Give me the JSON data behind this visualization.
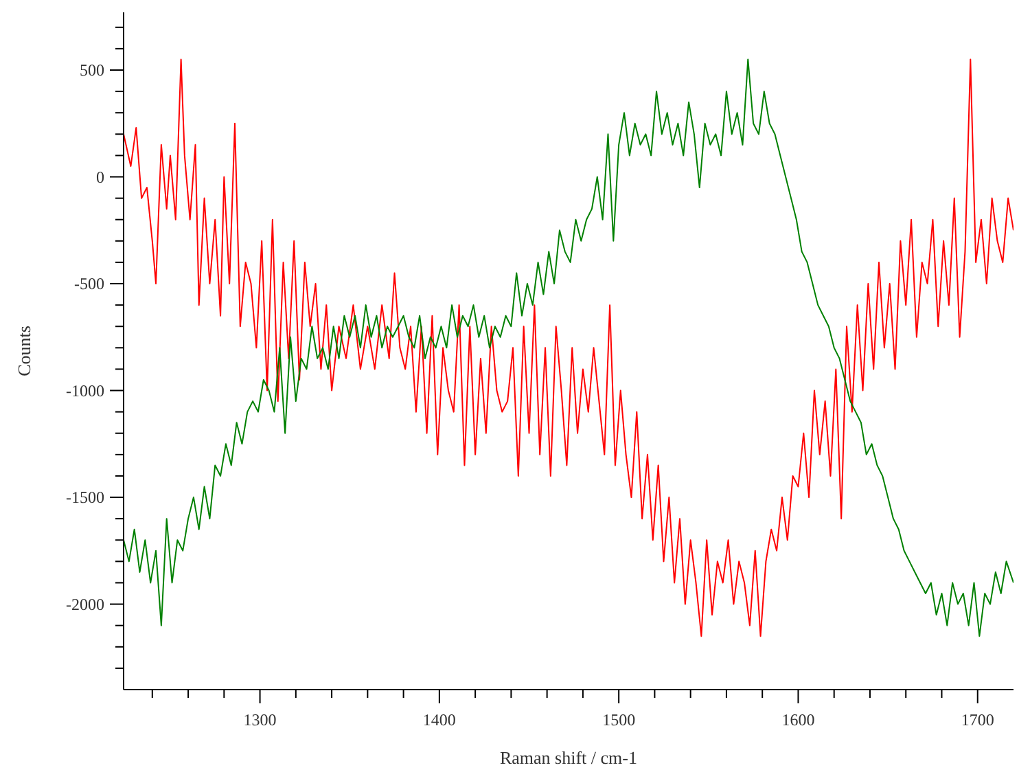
{
  "chart_data": {
    "type": "line",
    "xlabel": "Raman shift / cm-1",
    "ylabel": "Counts",
    "xlim": [
      1224,
      1720
    ],
    "ylim": [
      -2400,
      770
    ],
    "xticks": [
      {
        "value": 1240,
        "label": null
      },
      {
        "value": 1260,
        "label": null
      },
      {
        "value": 1280,
        "label": null
      },
      1300,
      {
        "value": 1320,
        "label": null
      },
      {
        "value": 1340,
        "label": null
      },
      {
        "value": 1360,
        "label": null
      },
      {
        "value": 1380,
        "label": null
      },
      1400,
      {
        "value": 1420,
        "label": null
      },
      {
        "value": 1440,
        "label": null
      },
      {
        "value": 1460,
        "label": null
      },
      {
        "value": 1480,
        "label": null
      },
      1500,
      {
        "value": 1520,
        "label": null
      },
      {
        "value": 1540,
        "label": null
      },
      {
        "value": 1560,
        "label": null
      },
      {
        "value": 1580,
        "label": null
      },
      1600,
      {
        "value": 1620,
        "label": null
      },
      {
        "value": 1640,
        "label": null
      },
      {
        "value": 1660,
        "label": null
      },
      {
        "value": 1680,
        "label": null
      },
      1700
    ],
    "yticks": [
      {
        "value": -2300,
        "label": null
      },
      {
        "value": -2200,
        "label": null
      },
      {
        "value": -2100,
        "label": null
      },
      -2000,
      {
        "value": -1900,
        "label": null
      },
      {
        "value": -1800,
        "label": null
      },
      {
        "value": -1700,
        "label": null
      },
      {
        "value": -1600,
        "label": null
      },
      -1500,
      {
        "value": -1400,
        "label": null
      },
      {
        "value": -1300,
        "label": null
      },
      {
        "value": -1200,
        "label": null
      },
      {
        "value": -1100,
        "label": null
      },
      -1000,
      {
        "value": -900,
        "label": null
      },
      {
        "value": -800,
        "label": null
      },
      {
        "value": -700,
        "label": null
      },
      {
        "value": -600,
        "label": null
      },
      -500,
      {
        "value": -400,
        "label": null
      },
      {
        "value": -300,
        "label": null
      },
      {
        "value": -200,
        "label": null
      },
      {
        "value": -100,
        "label": null
      },
      0,
      {
        "value": 100,
        "label": null
      },
      {
        "value": 200,
        "label": null
      },
      {
        "value": 300,
        "label": null
      },
      {
        "value": 400,
        "label": null
      },
      500,
      {
        "value": 600,
        "label": null
      },
      {
        "value": 700,
        "label": null
      }
    ],
    "grid": false,
    "marker": "none",
    "line_style": "solid",
    "series": [
      {
        "color": "#ff0000",
        "x": [
          1224,
          1228,
          1231,
          1234,
          1237,
          1240,
          1242,
          1245,
          1248,
          1250,
          1253,
          1256,
          1258,
          1261,
          1264,
          1266,
          1269,
          1272,
          1275,
          1278,
          1280,
          1283,
          1286,
          1289,
          1292,
          1295,
          1298,
          1301,
          1304,
          1307,
          1310,
          1313,
          1316,
          1319,
          1322,
          1325,
          1328,
          1331,
          1334,
          1337,
          1340,
          1344,
          1348,
          1352,
          1356,
          1360,
          1364,
          1368,
          1372,
          1375,
          1378,
          1381,
          1384,
          1387,
          1390,
          1393,
          1396,
          1399,
          1402,
          1405,
          1408,
          1411,
          1414,
          1417,
          1420,
          1423,
          1426,
          1429,
          1432,
          1435,
          1438,
          1441,
          1444,
          1447,
          1450,
          1453,
          1456,
          1459,
          1462,
          1465,
          1468,
          1471,
          1474,
          1477,
          1480,
          1483,
          1486,
          1489,
          1492,
          1495,
          1498,
          1501,
          1504,
          1507,
          1510,
          1513,
          1516,
          1519,
          1522,
          1525,
          1528,
          1531,
          1534,
          1537,
          1540,
          1543,
          1546,
          1549,
          1552,
          1555,
          1558,
          1561,
          1564,
          1567,
          1570,
          1573,
          1576,
          1579,
          1582,
          1585,
          1588,
          1591,
          1594,
          1597,
          1600,
          1603,
          1606,
          1609,
          1612,
          1615,
          1618,
          1621,
          1624,
          1627,
          1630,
          1633,
          1636,
          1639,
          1642,
          1645,
          1648,
          1651,
          1654,
          1657,
          1660,
          1663,
          1666,
          1669,
          1672,
          1675,
          1678,
          1681,
          1684,
          1687,
          1690,
          1693,
          1696,
          1699,
          1702,
          1705,
          1708,
          1711,
          1714,
          1717,
          1720
        ],
        "values": [
          200,
          50,
          230,
          -100,
          -50,
          -300,
          -500,
          150,
          -150,
          100,
          -200,
          550,
          100,
          -200,
          150,
          -600,
          -100,
          -500,
          -200,
          -650,
          0,
          -500,
          250,
          -700,
          -400,
          -500,
          -800,
          -300,
          -1000,
          -200,
          -1050,
          -400,
          -850,
          -300,
          -950,
          -400,
          -700,
          -500,
          -900,
          -600,
          -1000,
          -700,
          -850,
          -600,
          -900,
          -700,
          -900,
          -600,
          -850,
          -450,
          -800,
          -900,
          -700,
          -1100,
          -700,
          -1200,
          -650,
          -1300,
          -800,
          -1000,
          -1100,
          -600,
          -1350,
          -700,
          -1300,
          -850,
          -1200,
          -700,
          -1000,
          -1100,
          -1050,
          -800,
          -1400,
          -700,
          -1200,
          -600,
          -1300,
          -800,
          -1400,
          -700,
          -1000,
          -1350,
          -800,
          -1200,
          -900,
          -1100,
          -800,
          -1050,
          -1300,
          -600,
          -1350,
          -1000,
          -1300,
          -1500,
          -1100,
          -1600,
          -1300,
          -1700,
          -1350,
          -1800,
          -1500,
          -1900,
          -1600,
          -2000,
          -1700,
          -1900,
          -2150,
          -1700,
          -2050,
          -1800,
          -1900,
          -1700,
          -2000,
          -1800,
          -1900,
          -2100,
          -1750,
          -2150,
          -1800,
          -1650,
          -1750,
          -1500,
          -1700,
          -1400,
          -1450,
          -1200,
          -1500,
          -1000,
          -1300,
          -1050,
          -1400,
          -900,
          -1600,
          -700,
          -1100,
          -600,
          -1000,
          -500,
          -900,
          -400,
          -800,
          -500,
          -900,
          -300,
          -600,
          -200,
          -750,
          -400,
          -500,
          -200,
          -700,
          -300,
          -600,
          -100,
          -750,
          -350,
          550,
          -400,
          -200,
          -500,
          -100,
          -300,
          -400,
          -100,
          -250
        ]
      },
      {
        "color": "#008000",
        "x": [
          1224,
          1227,
          1230,
          1233,
          1236,
          1239,
          1242,
          1245,
          1248,
          1251,
          1254,
          1257,
          1260,
          1263,
          1266,
          1269,
          1272,
          1275,
          1278,
          1281,
          1284,
          1287,
          1290,
          1293,
          1296,
          1299,
          1302,
          1305,
          1308,
          1311,
          1314,
          1317,
          1320,
          1323,
          1326,
          1329,
          1332,
          1335,
          1338,
          1341,
          1344,
          1347,
          1350,
          1353,
          1356,
          1359,
          1362,
          1365,
          1368,
          1371,
          1374,
          1377,
          1380,
          1383,
          1386,
          1389,
          1392,
          1395,
          1398,
          1401,
          1404,
          1407,
          1410,
          1413,
          1416,
          1419,
          1422,
          1425,
          1428,
          1431,
          1434,
          1437,
          1440,
          1443,
          1446,
          1449,
          1452,
          1455,
          1458,
          1461,
          1464,
          1467,
          1470,
          1473,
          1476,
          1479,
          1482,
          1485,
          1488,
          1491,
          1494,
          1497,
          1500,
          1503,
          1506,
          1509,
          1512,
          1515,
          1518,
          1521,
          1524,
          1527,
          1530,
          1533,
          1536,
          1539,
          1542,
          1545,
          1548,
          1551,
          1554,
          1557,
          1560,
          1563,
          1566,
          1569,
          1572,
          1575,
          1578,
          1581,
          1584,
          1587,
          1590,
          1593,
          1596,
          1599,
          1602,
          1605,
          1608,
          1611,
          1614,
          1617,
          1620,
          1623,
          1626,
          1629,
          1632,
          1635,
          1638,
          1641,
          1644,
          1647,
          1650,
          1653,
          1656,
          1659,
          1662,
          1665,
          1668,
          1671,
          1674,
          1677,
          1680,
          1683,
          1686,
          1689,
          1692,
          1695,
          1698,
          1701,
          1704,
          1707,
          1710,
          1713,
          1716,
          1720
        ],
        "values": [
          -1700,
          -1800,
          -1650,
          -1850,
          -1700,
          -1900,
          -1750,
          -2100,
          -1600,
          -1900,
          -1700,
          -1750,
          -1600,
          -1500,
          -1650,
          -1450,
          -1600,
          -1350,
          -1400,
          -1250,
          -1350,
          -1150,
          -1250,
          -1100,
          -1050,
          -1100,
          -950,
          -1000,
          -1100,
          -800,
          -1200,
          -750,
          -1050,
          -850,
          -900,
          -700,
          -850,
          -800,
          -900,
          -700,
          -850,
          -650,
          -750,
          -650,
          -800,
          -600,
          -750,
          -650,
          -800,
          -700,
          -750,
          -700,
          -650,
          -750,
          -800,
          -650,
          -850,
          -750,
          -800,
          -700,
          -800,
          -600,
          -750,
          -650,
          -700,
          -600,
          -750,
          -650,
          -800,
          -700,
          -750,
          -650,
          -700,
          -450,
          -650,
          -500,
          -600,
          -400,
          -550,
          -350,
          -500,
          -250,
          -350,
          -400,
          -200,
          -300,
          -200,
          -150,
          0,
          -200,
          200,
          -300,
          150,
          300,
          100,
          250,
          150,
          200,
          100,
          400,
          200,
          300,
          150,
          250,
          100,
          350,
          200,
          -50,
          250,
          150,
          200,
          100,
          400,
          200,
          300,
          150,
          550,
          250,
          200,
          400,
          250,
          200,
          100,
          0,
          -100,
          -200,
          -350,
          -400,
          -500,
          -600,
          -650,
          -700,
          -800,
          -850,
          -950,
          -1050,
          -1100,
          -1150,
          -1300,
          -1250,
          -1350,
          -1400,
          -1500,
          -1600,
          -1650,
          -1750,
          -1800,
          -1850,
          -1900,
          -1950,
          -1900,
          -2050,
          -1950,
          -2100,
          -1900,
          -2000,
          -1950,
          -2100,
          -1900,
          -2150,
          -1950,
          -2000,
          -1850,
          -1950,
          -1800,
          -1900
        ]
      }
    ]
  }
}
